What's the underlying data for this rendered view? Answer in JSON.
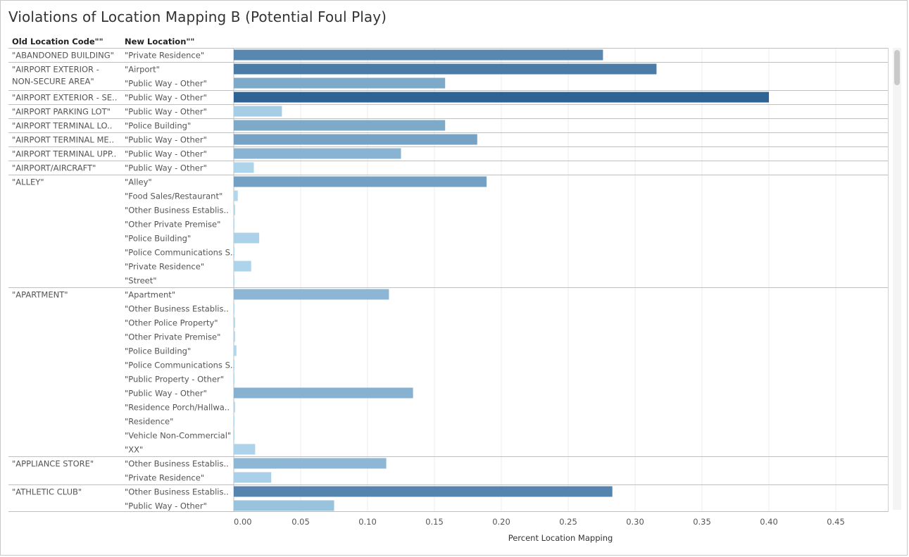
{
  "title": "Violations of Location Mapping B (Potential Foul Play)",
  "headers": {
    "old": "Old Location Code\"\"",
    "new": "New Location\"\""
  },
  "chart_data": {
    "type": "bar",
    "orientation": "horizontal",
    "title": "Violations of Location Mapping B (Potential Foul Play)",
    "xlabel": "Percent Location Mapping",
    "xlim": [
      0,
      0.48
    ],
    "xticks": [
      "0.00",
      "0.05",
      "0.10",
      "0.15",
      "0.20",
      "0.25",
      "0.30",
      "0.35",
      "0.40",
      "0.45"
    ],
    "grid": true,
    "groups": [
      {
        "old": [
          "\"ABANDONED BUILDING\""
        ],
        "rows": [
          {
            "new": "\"Private Residence\"",
            "value": 0.276
          }
        ]
      },
      {
        "old": [
          "\"AIRPORT EXTERIOR -",
          "NON-SECURE AREA\""
        ],
        "rows": [
          {
            "new": "\"Airport\"",
            "value": 0.316
          },
          {
            "new": "\"Public Way - Other\"",
            "value": 0.158
          }
        ]
      },
      {
        "old": [
          "\"AIRPORT EXTERIOR - SE.."
        ],
        "rows": [
          {
            "new": "\"Public Way - Other\"",
            "value": 0.4
          }
        ]
      },
      {
        "old": [
          "\"AIRPORT PARKING LOT\""
        ],
        "rows": [
          {
            "new": "\"Public Way - Other\"",
            "value": 0.036
          }
        ]
      },
      {
        "old": [
          "\"AIRPORT TERMINAL LO.."
        ],
        "rows": [
          {
            "new": "\"Police Building\"",
            "value": 0.158
          }
        ]
      },
      {
        "old": [
          "\"AIRPORT TERMINAL ME.."
        ],
        "rows": [
          {
            "new": "\"Public Way - Other\"",
            "value": 0.182
          }
        ]
      },
      {
        "old": [
          "\"AIRPORT TERMINAL UPP.."
        ],
        "rows": [
          {
            "new": "\"Public Way - Other\"",
            "value": 0.125
          }
        ]
      },
      {
        "old": [
          "\"AIRPORT/AIRCRAFT\""
        ],
        "rows": [
          {
            "new": "\"Public Way - Other\"",
            "value": 0.015
          }
        ]
      },
      {
        "old": [
          "\"ALLEY\""
        ],
        "rows": [
          {
            "new": "\"Alley\"",
            "value": 0.189
          },
          {
            "new": "\"Food Sales/Restaurant\"",
            "value": 0.003
          },
          {
            "new": "\"Other Business Establis..",
            "value": 0.001
          },
          {
            "new": "\"Other Private Premise\"",
            "value": 0.0005
          },
          {
            "new": "\"Police Building\"",
            "value": 0.019
          },
          {
            "new": "\"Police Communications S..",
            "value": 0.0005
          },
          {
            "new": "\"Private Residence\"",
            "value": 0.013
          },
          {
            "new": "\"Street\"",
            "value": 0.0005
          }
        ]
      },
      {
        "old": [
          "\"APARTMENT\""
        ],
        "rows": [
          {
            "new": "\"Apartment\"",
            "value": 0.116
          },
          {
            "new": "\"Other Business Establis..",
            "value": 0.0005
          },
          {
            "new": "\"Other Police Property\"",
            "value": 0.001
          },
          {
            "new": "\"Other Private Premise\"",
            "value": 0.001
          },
          {
            "new": "\"Police Building\"",
            "value": 0.002
          },
          {
            "new": "\"Police Communications S..",
            "value": 0.0003
          },
          {
            "new": "\"Public Property - Other\"",
            "value": 0.0005
          },
          {
            "new": "\"Public Way - Other\"",
            "value": 0.134
          },
          {
            "new": "\"Residence Porch/Hallwa..",
            "value": 0.001
          },
          {
            "new": "\"Residence\"",
            "value": 0.0003
          },
          {
            "new": "\"Vehicle Non-Commercial\"",
            "value": 0.0005
          },
          {
            "new": "\"XX\"",
            "value": 0.016
          }
        ]
      },
      {
        "old": [
          "\"APPLIANCE STORE\""
        ],
        "rows": [
          {
            "new": "\"Other Business Establis..",
            "value": 0.114
          },
          {
            "new": "\"Private Residence\"",
            "value": 0.028
          }
        ]
      },
      {
        "old": [
          "\"ATHLETIC CLUB\""
        ],
        "rows": [
          {
            "new": "\"Other Business Establis..",
            "value": 0.283
          },
          {
            "new": "\"Public Way - Other\"",
            "value": 0.075
          }
        ]
      }
    ]
  }
}
